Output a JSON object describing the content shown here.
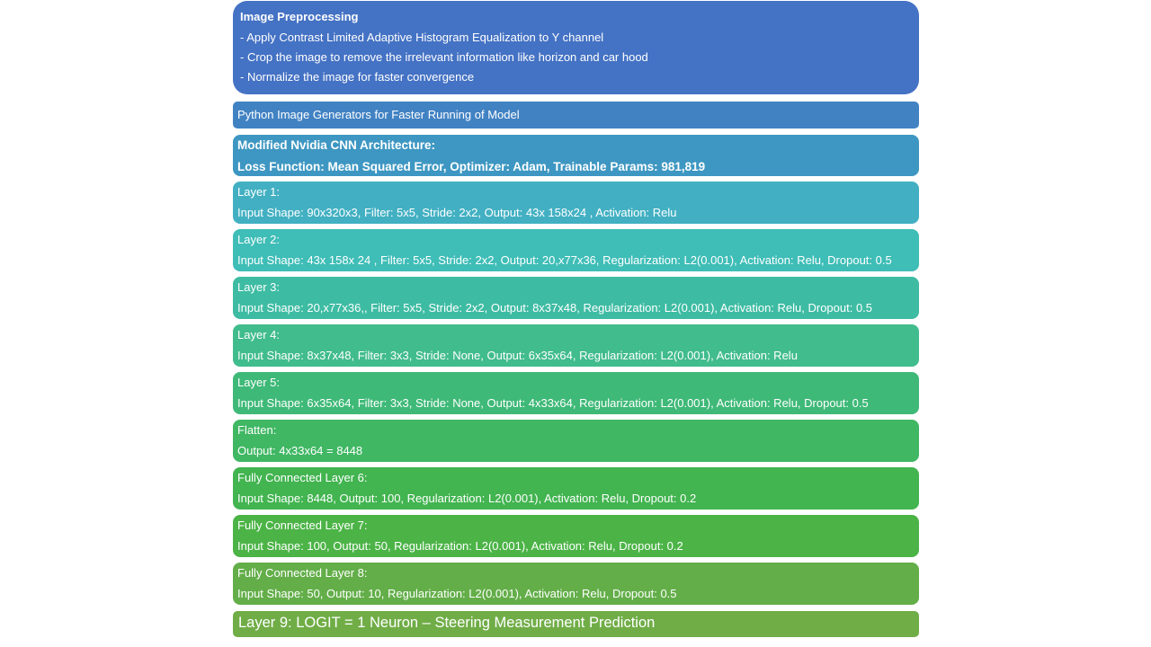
{
  "blocks": [
    {
      "id": "preprocessing",
      "color": "#4472C4",
      "title": "Image Preprocessing",
      "lines": [
        "- Apply Contrast Limited Adaptive Histogram Equalization to Y channel",
        "- Crop the image to remove the irrelevant information like horizon and car hood",
        "- Normalize the image for faster convergence"
      ]
    },
    {
      "id": "generators",
      "color": "#4182C3",
      "lines": [
        "Python Image Generators for Faster Running of Model"
      ]
    },
    {
      "id": "architecture",
      "color": "#3E97C2",
      "lines": [
        "Modified Nvidia CNN Architecture:",
        "Loss Function: Mean Squared Error, Optimizer: Adam, Trainable Params: 981,819"
      ]
    },
    {
      "id": "layer1",
      "color": "#42B0C2",
      "lines": [
        "Layer 1:",
        "Input Shape: 90x320x3,  Filter: 5x5, Stride: 2x2, Output: 43x 158x24  , Activation: Relu"
      ]
    },
    {
      "id": "layer2",
      "color": "#3FBDB7",
      "lines": [
        "Layer 2:",
        "Input Shape: 43x 158x 24 , Filter: 5x5, Stride: 2x2, Output: 20,x77x36,  Regularization: L2(0.001), Activation: Relu, Dropout: 0.5"
      ]
    },
    {
      "id": "layer3",
      "color": "#3EBCA3",
      "lines": [
        "Layer 3:",
        "Input Shape: 20,x77x36,, Filter: 5x5, Stride: 2x2, Output: 8x37x48,  Regularization: L2(0.001), Activation: Relu, Dropout: 0.5"
      ]
    },
    {
      "id": "layer4",
      "color": "#41BC8D",
      "lines": [
        "Layer 4:",
        "Input Shape: 8x37x48,  Filter: 3x3, Stride: None, Output: 6x35x64, Regularization: L2(0.001), Activation: Relu"
      ]
    },
    {
      "id": "layer5",
      "color": "#3FB978",
      "lines": [
        "Layer 5:",
        "Input Shape: 6x35x64,  Filter: 3x3, Stride: None, Output: 4x33x64, Regularization: L2(0.001), Activation: Relu, Dropout: 0.5"
      ]
    },
    {
      "id": "flatten",
      "color": "#3FB763",
      "lines": [
        "Flatten:",
        "Output: 4x33x64 = 8448"
      ]
    },
    {
      "id": "fc6",
      "color": "#42B450",
      "lines": [
        "Fully Connected Layer 6:",
        "Input Shape: 8448,   Output: 100,  Regularization: L2(0.001), Activation: Relu, Dropout: 0.2"
      ]
    },
    {
      "id": "fc7",
      "color": "#4CB447",
      "lines": [
        "Fully Connected Layer 7:",
        "Input Shape: 100,  Output: 50,  Regularization: L2(0.001), Activation: Relu, Dropout: 0.2"
      ]
    },
    {
      "id": "fc8",
      "color": "#63AE49",
      "lines": [
        "Fully Connected Layer 8:",
        "Input Shape: 50,  Output: 10,  Regularization: L2(0.001), Activation: Relu, Dropout: 0.5"
      ]
    },
    {
      "id": "layer9",
      "color": "#70AD47",
      "lines": [
        "Layer 9:  LOGIT = 1 Neuron – Steering Measurement Prediction"
      ]
    }
  ]
}
